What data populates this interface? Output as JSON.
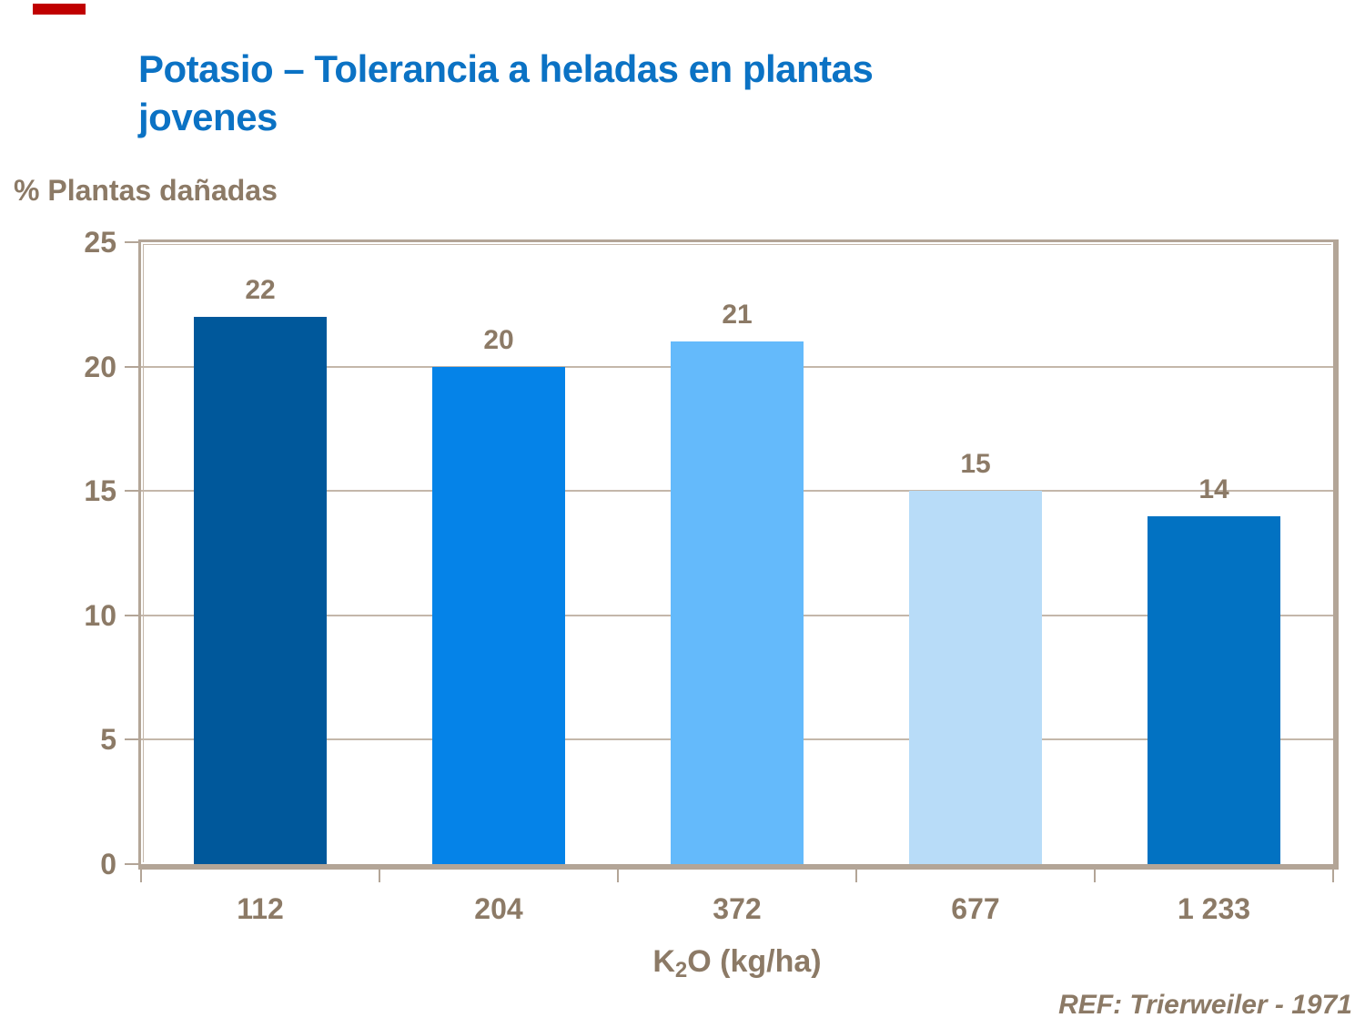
{
  "accent": {
    "color": "#c00000"
  },
  "title": {
    "line1": "Potasio – Tolerancia a heladas en plantas",
    "line2": "jovenes",
    "color": "#0b72c4"
  },
  "colors": {
    "text_brown": "#8c7a66",
    "frame_tan": "#b3a597",
    "frame_tan_light": "#c4b7aa",
    "background": "#ffffff"
  },
  "axis": {
    "y_title": "% Plantas dañadas",
    "x_title_base": "K",
    "x_title_sub": "2",
    "x_title_rest": "O (kg/ha)"
  },
  "footer": {
    "reference": "REF: Trierweiler - 1971"
  },
  "chart_data": {
    "type": "bar",
    "title": "Potasio – Tolerancia a heladas en plantas jovenes",
    "categories": [
      "112",
      "204",
      "372",
      "677",
      "1 233"
    ],
    "values": [
      22,
      20,
      21,
      15,
      14
    ],
    "bar_colors": [
      "#00589b",
      "#0583e8",
      "#64bafb",
      "#b8dcf8",
      "#0272c2"
    ],
    "xlabel": "K2O (kg/ha)",
    "ylabel": "% Plantas dañadas",
    "ylim": [
      0,
      25
    ],
    "yticks": [
      0,
      5,
      10,
      15,
      20,
      25
    ],
    "gridlines": [
      5,
      10,
      15,
      20
    ],
    "grid": true,
    "legend": false
  }
}
